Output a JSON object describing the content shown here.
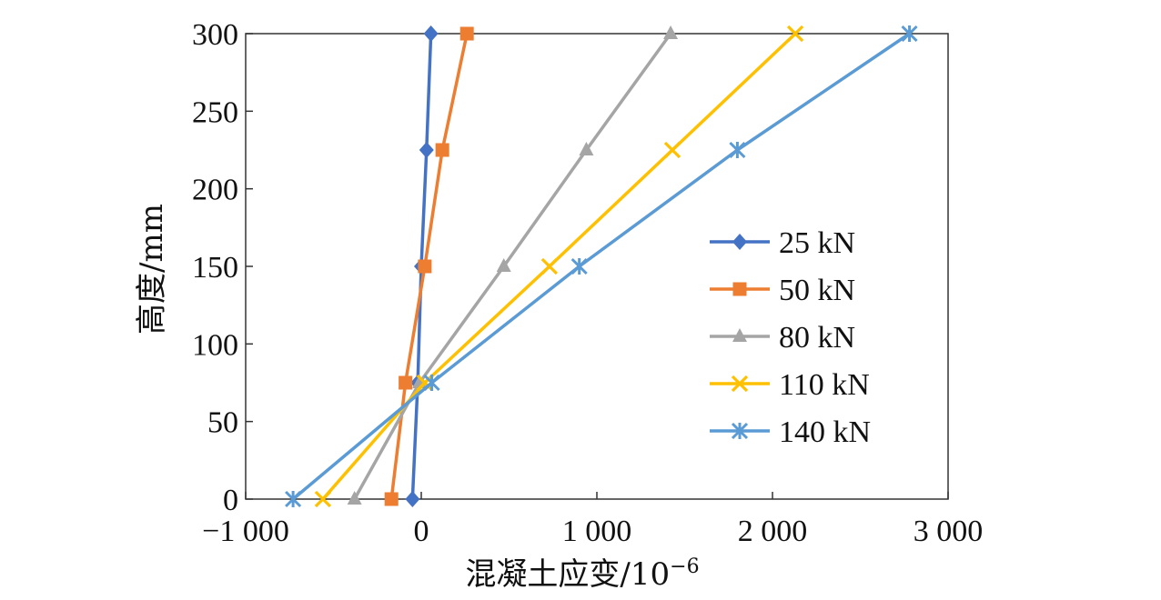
{
  "chart_data": {
    "type": "line",
    "xlabel": "混凝土应变/10",
    "xlabel_sup": "−6",
    "ylabel": "高度/mm",
    "xlim": [
      -1000,
      3000
    ],
    "ylim": [
      0,
      300
    ],
    "xticks": [
      -1000,
      0,
      1000,
      2000,
      3000
    ],
    "xtick_labels": [
      "−1 000",
      "0",
      "1 000",
      "2 000",
      "3 000"
    ],
    "yticks": [
      0,
      50,
      100,
      150,
      200,
      250,
      300
    ],
    "ytick_labels": [
      "0",
      "50",
      "100",
      "150",
      "200",
      "250",
      "300"
    ],
    "grid": false,
    "legend_position": "right",
    "series": [
      {
        "name": "25 kN",
        "color": "#4472C4",
        "marker": "diamond",
        "points": [
          [
            -50,
            0
          ],
          [
            -20,
            75
          ],
          [
            0,
            150
          ],
          [
            30,
            225
          ],
          [
            55,
            300
          ]
        ]
      },
      {
        "name": "50 kN",
        "color": "#ED7D31",
        "marker": "square",
        "points": [
          [
            -170,
            0
          ],
          [
            -90,
            75
          ],
          [
            20,
            150
          ],
          [
            120,
            225
          ],
          [
            260,
            300
          ]
        ]
      },
      {
        "name": "80 kN",
        "color": "#A5A5A5",
        "marker": "triangle",
        "points": [
          [
            -380,
            0
          ],
          [
            -10,
            75
          ],
          [
            470,
            150
          ],
          [
            940,
            225
          ],
          [
            1420,
            300
          ]
        ]
      },
      {
        "name": "110 kN",
        "color": "#FFC000",
        "marker": "x",
        "points": [
          [
            -560,
            0
          ],
          [
            20,
            75
          ],
          [
            730,
            150
          ],
          [
            1430,
            225
          ],
          [
            2130,
            300
          ]
        ]
      },
      {
        "name": "140 kN",
        "color": "#5B9BD5",
        "marker": "star",
        "points": [
          [
            -730,
            0
          ],
          [
            60,
            75
          ],
          [
            900,
            150
          ],
          [
            1800,
            225
          ],
          [
            2780,
            300
          ]
        ]
      }
    ]
  }
}
